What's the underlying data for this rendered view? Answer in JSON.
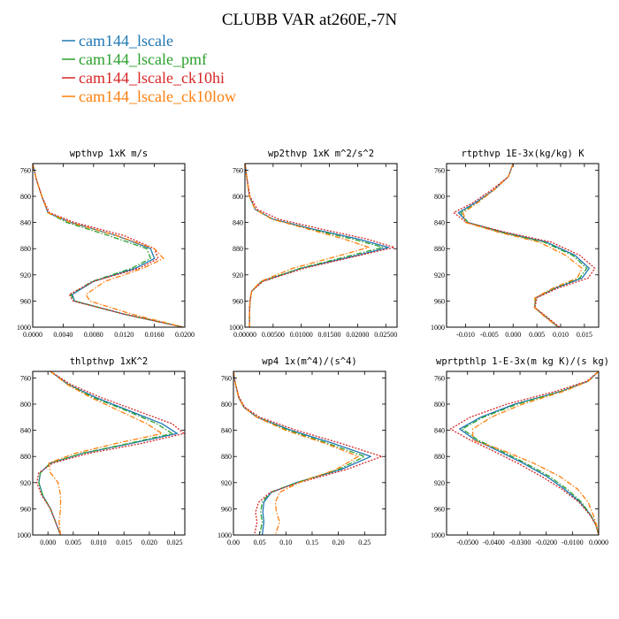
{
  "figure": {
    "title": "CLUBB VAR at260E,-7N"
  },
  "legend": [
    {
      "name": "cam144_lscale",
      "color": "#1f77b4",
      "dash": "solid"
    },
    {
      "name": "cam144_lscale_pmf",
      "color": "#2ca02c",
      "dash": "dashdot"
    },
    {
      "name": "cam144_lscale_ck10hi",
      "color": "#d62728",
      "dash": "dotted"
    },
    {
      "name": "cam144_lscale_ck10low",
      "color": "#ff7f0e",
      "dash": "dashdot"
    }
  ],
  "chart_data": [
    {
      "type": "line",
      "title": "wpthvp  1xK m/s",
      "xlim": [
        0,
        0.02
      ],
      "ylim": [
        1000,
        750
      ],
      "xticks": [
        0,
        0.004,
        0.008,
        0.012,
        0.016,
        0.02
      ],
      "xtick_labels": [
        "0.0000",
        "0.0040",
        "0.0080",
        "0.0120",
        "0.0160",
        "0.0200"
      ],
      "yticks": [
        760,
        800,
        840,
        880,
        920,
        960,
        1000
      ],
      "ytick_labels": [
        "760",
        "800",
        "840",
        "880",
        "920",
        "960",
        "1000"
      ],
      "y": [
        750,
        775,
        800,
        825,
        840,
        860,
        880,
        895,
        910,
        930,
        950,
        960,
        980,
        1000
      ],
      "series": [
        {
          "name": "cam144_lscale",
          "x": [
            0,
            0.0005,
            0.0012,
            0.002,
            0.005,
            0.011,
            0.0155,
            0.016,
            0.0135,
            0.008,
            0.0052,
            0.0055,
            0.012,
            0.0198
          ]
        },
        {
          "name": "cam144_lscale_pmf",
          "x": [
            0,
            0.0005,
            0.0012,
            0.002,
            0.0045,
            0.01,
            0.015,
            0.0155,
            0.013,
            0.0078,
            0.005,
            0.0055,
            0.012,
            0.0198
          ]
        },
        {
          "name": "cam144_lscale_ck10hi",
          "x": [
            0,
            0.0005,
            0.0012,
            0.0022,
            0.0055,
            0.012,
            0.016,
            0.0165,
            0.014,
            0.008,
            0.0048,
            0.0053,
            0.012,
            0.0198
          ]
        },
        {
          "name": "cam144_lscale_ck10low",
          "x": [
            0,
            0.0005,
            0.0012,
            0.002,
            0.005,
            0.011,
            0.016,
            0.0172,
            0.0145,
            0.0095,
            0.007,
            0.0075,
            0.013,
            0.0198
          ]
        }
      ]
    },
    {
      "type": "line",
      "title": "wp2thvp  1xK m^2/s^2",
      "xlim": [
        0,
        0.027
      ],
      "ylim": [
        1000,
        750
      ],
      "xticks": [
        0,
        0.005,
        0.01,
        0.015,
        0.02,
        0.025
      ],
      "xtick_labels": [
        "0.00000",
        "0.00500",
        "0.01000",
        "0.01500",
        "0.02000",
        "0.02500"
      ],
      "yticks": [
        760,
        800,
        840,
        880,
        920,
        960,
        1000
      ],
      "ytick_labels": [
        "760",
        "800",
        "840",
        "880",
        "920",
        "960",
        "1000"
      ],
      "y": [
        750,
        775,
        800,
        820,
        835,
        850,
        865,
        878,
        890,
        910,
        930,
        945,
        960,
        980,
        1000
      ],
      "series": [
        {
          "name": "cam144_lscale",
          "x": [
            0,
            0.0004,
            0.0008,
            0.0018,
            0.005,
            0.012,
            0.02,
            0.0255,
            0.02,
            0.01,
            0.003,
            0.0012,
            0.0009,
            0.0008,
            0.0008
          ]
        },
        {
          "name": "cam144_lscale_pmf",
          "x": [
            0,
            0.0004,
            0.0008,
            0.0018,
            0.0048,
            0.0115,
            0.019,
            0.0245,
            0.019,
            0.0098,
            0.003,
            0.0012,
            0.0009,
            0.0008,
            0.0008
          ]
        },
        {
          "name": "cam144_lscale_ck10hi",
          "x": [
            0,
            0.0004,
            0.0009,
            0.0022,
            0.006,
            0.0135,
            0.0215,
            0.0265,
            0.0205,
            0.0105,
            0.0032,
            0.0012,
            0.0009,
            0.0008,
            0.0008
          ]
        },
        {
          "name": "cam144_lscale_ck10low",
          "x": [
            0,
            0.0004,
            0.0008,
            0.0018,
            0.0048,
            0.0112,
            0.0175,
            0.022,
            0.017,
            0.0085,
            0.0028,
            0.0012,
            0.0009,
            0.0008,
            0.0008
          ]
        }
      ]
    },
    {
      "type": "line",
      "title": "rtpthvp  1E-3x(kg/kg) K",
      "xlim": [
        -0.014,
        0.018
      ],
      "ylim": [
        1000,
        750
      ],
      "xticks": [
        -0.01,
        -0.005,
        0,
        0.005,
        0.01,
        0.015
      ],
      "xtick_labels": [
        "-0.010",
        "-0.005",
        "0.000",
        "0.005",
        "0.010",
        "0.015"
      ],
      "yticks": [
        760,
        800,
        840,
        880,
        920,
        960,
        1000
      ],
      "ytick_labels": [
        "760",
        "800",
        "840",
        "880",
        "920",
        "960",
        "1000"
      ],
      "y": [
        750,
        770,
        790,
        810,
        825,
        840,
        855,
        870,
        890,
        910,
        925,
        940,
        955,
        970,
        985,
        1000
      ],
      "series": [
        {
          "name": "cam144_lscale",
          "x": [
            0,
            -0.001,
            -0.004,
            -0.008,
            -0.0115,
            -0.0095,
            -0.002,
            0.007,
            0.013,
            0.016,
            0.0145,
            0.009,
            0.0048,
            0.0045,
            0.007,
            0.0095
          ]
        },
        {
          "name": "cam144_lscale_pmf",
          "x": [
            0,
            -0.001,
            -0.004,
            -0.0075,
            -0.011,
            -0.0095,
            -0.0025,
            0.0065,
            0.0125,
            0.0155,
            0.014,
            0.0088,
            0.0048,
            0.0045,
            0.007,
            0.0095
          ]
        },
        {
          "name": "cam144_lscale_ck10hi",
          "x": [
            0,
            -0.001,
            -0.0045,
            -0.0085,
            -0.0125,
            -0.0098,
            -0.0015,
            0.008,
            0.014,
            0.0172,
            0.0158,
            0.0095,
            0.005,
            0.0046,
            0.0072,
            0.0098
          ]
        },
        {
          "name": "cam144_lscale_ck10low",
          "x": [
            0,
            -0.001,
            -0.004,
            -0.0075,
            -0.0105,
            -0.01,
            -0.003,
            0.0055,
            0.011,
            0.0145,
            0.0135,
            0.0085,
            0.0046,
            0.0045,
            0.0068,
            0.0095
          ]
        }
      ]
    },
    {
      "type": "line",
      "title": "thlpthvp  1xK^2",
      "xlim": [
        -0.003,
        0.027
      ],
      "ylim": [
        1000,
        750
      ],
      "xticks": [
        0,
        0.005,
        0.01,
        0.015,
        0.02,
        0.025
      ],
      "xtick_labels": [
        "0.000",
        "0.005",
        "0.010",
        "0.015",
        "0.020",
        "0.025"
      ],
      "yticks": [
        760,
        800,
        840,
        880,
        920,
        960,
        1000
      ],
      "ytick_labels": [
        "760",
        "800",
        "840",
        "880",
        "920",
        "960",
        "1000"
      ],
      "y": [
        750,
        770,
        790,
        810,
        830,
        845,
        860,
        875,
        890,
        905,
        920,
        940,
        960,
        980,
        1000
      ],
      "series": [
        {
          "name": "cam144_lscale",
          "x": [
            0.0005,
            0.004,
            0.0095,
            0.016,
            0.0225,
            0.0255,
            0.0165,
            0.007,
            0.0005,
            -0.0015,
            -0.0018,
            -0.001,
            0.0005,
            0.0015,
            0.0025
          ]
        },
        {
          "name": "cam144_lscale_pmf",
          "x": [
            0.0005,
            0.004,
            0.009,
            0.0155,
            0.0215,
            0.0245,
            0.016,
            0.0068,
            0.0005,
            -0.0015,
            -0.0018,
            -0.001,
            0.0005,
            0.0015,
            0.0025
          ]
        },
        {
          "name": "cam144_lscale_ck10hi",
          "x": [
            0.0005,
            0.0045,
            0.0105,
            0.0175,
            0.0245,
            0.0268,
            0.0185,
            0.0082,
            0.001,
            -0.0018,
            -0.0022,
            -0.0012,
            0.0005,
            0.0015,
            0.0025
          ]
        },
        {
          "name": "cam144_lscale_ck10low",
          "x": [
            0.0005,
            0.0038,
            0.0085,
            0.014,
            0.0195,
            0.0225,
            0.0135,
            0.0055,
            0.0002,
            0.0005,
            0.002,
            0.0025,
            0.0025,
            0.0022,
            0.0025
          ]
        }
      ]
    },
    {
      "type": "line",
      "title": "wp4  1x(m^4)/(s^4)",
      "xlim": [
        0,
        0.29
      ],
      "ylim": [
        1000,
        750
      ],
      "xticks": [
        0,
        0.05,
        0.1,
        0.15,
        0.2,
        0.25
      ],
      "xtick_labels": [
        "0.00",
        "0.05",
        "0.10",
        "0.15",
        "0.20",
        "0.25"
      ],
      "yticks": [
        760,
        800,
        840,
        880,
        920,
        960,
        1000
      ],
      "ytick_labels": [
        "760",
        "800",
        "840",
        "880",
        "920",
        "960",
        "1000"
      ],
      "y": [
        750,
        770,
        790,
        805,
        820,
        840,
        860,
        880,
        900,
        920,
        935,
        950,
        965,
        980,
        1000
      ],
      "series": [
        {
          "name": "cam144_lscale",
          "x": [
            0,
            0.004,
            0.01,
            0.02,
            0.045,
            0.11,
            0.19,
            0.262,
            0.205,
            0.12,
            0.072,
            0.058,
            0.056,
            0.058,
            0.055
          ]
        },
        {
          "name": "cam144_lscale_pmf",
          "x": [
            0,
            0.004,
            0.01,
            0.02,
            0.045,
            0.105,
            0.18,
            0.25,
            0.2,
            0.12,
            0.07,
            0.055,
            0.052,
            0.055,
            0.05
          ]
        },
        {
          "name": "cam144_lscale_ck10hi",
          "x": [
            0,
            0.004,
            0.011,
            0.022,
            0.05,
            0.12,
            0.205,
            0.283,
            0.215,
            0.125,
            0.07,
            0.048,
            0.042,
            0.045,
            0.04
          ]
        },
        {
          "name": "cam144_lscale_ck10low",
          "x": [
            0,
            0.004,
            0.01,
            0.02,
            0.044,
            0.1,
            0.175,
            0.238,
            0.195,
            0.125,
            0.088,
            0.08,
            0.082,
            0.088,
            0.08
          ]
        }
      ]
    },
    {
      "type": "line",
      "title": "wprtpthlp  1-E-3x(m kg K)/(s kg)",
      "xlim": [
        -0.058,
        0
      ],
      "ylim": [
        1000,
        750
      ],
      "xticks": [
        -0.05,
        -0.04,
        -0.03,
        -0.02,
        -0.01,
        0
      ],
      "xtick_labels": [
        "-0.0500",
        "-0.0400",
        "-0.0300",
        "-0.0200",
        "-0.0100",
        "0.0000"
      ],
      "yticks": [
        760,
        800,
        840,
        880,
        920,
        960,
        1000
      ],
      "ytick_labels": [
        "760",
        "800",
        "840",
        "880",
        "920",
        "960",
        "1000"
      ],
      "y": [
        750,
        765,
        780,
        800,
        820,
        838,
        855,
        870,
        890,
        910,
        930,
        950,
        970,
        985,
        1000
      ],
      "series": [
        {
          "name": "cam144_lscale",
          "x": [
            0,
            -0.004,
            -0.014,
            -0.032,
            -0.045,
            -0.053,
            -0.047,
            -0.039,
            -0.029,
            -0.02,
            -0.013,
            -0.007,
            -0.003,
            -0.001,
            0
          ]
        },
        {
          "name": "cam144_lscale_pmf",
          "x": [
            0,
            -0.004,
            -0.014,
            -0.031,
            -0.044,
            -0.052,
            -0.046,
            -0.038,
            -0.028,
            -0.019,
            -0.012,
            -0.0065,
            -0.003,
            -0.001,
            0
          ]
        },
        {
          "name": "cam144_lscale_ck10hi",
          "x": [
            0,
            -0.0045,
            -0.016,
            -0.035,
            -0.049,
            -0.0565,
            -0.049,
            -0.041,
            -0.031,
            -0.022,
            -0.014,
            -0.0075,
            -0.0032,
            -0.001,
            0
          ]
        },
        {
          "name": "cam144_lscale_ck10low",
          "x": [
            0,
            -0.004,
            -0.013,
            -0.029,
            -0.041,
            -0.048,
            -0.048,
            -0.037,
            -0.025,
            -0.015,
            -0.008,
            -0.004,
            -0.002,
            -0.0008,
            0
          ]
        }
      ]
    }
  ]
}
